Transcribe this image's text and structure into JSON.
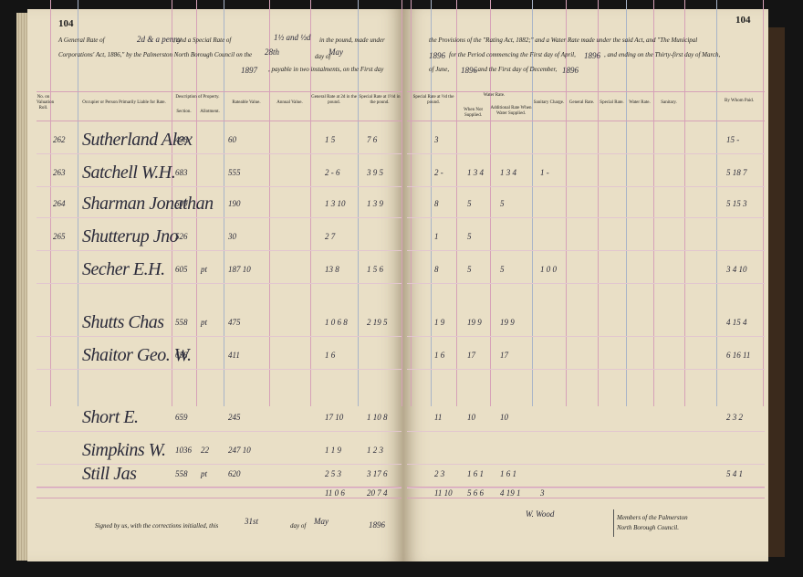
{
  "pages": {
    "left_number": "104",
    "right_number": "104"
  },
  "header": {
    "left": [
      "A General Rate of",
      "2d & a penny",
      ", and a Special Rate of",
      "1½ and ½d",
      "in the pound, made under",
      "Corporations' Act, 1886,\" by the Palmerston North Borough Council on the",
      "28th",
      "day of",
      "May",
      "1897",
      ", payable in two instalments, on the First day"
    ],
    "right": [
      "the Provisions of the \"Rating Act, 1882;\" and a Water Rate made under the said Act, and \"The Municipal",
      "1896",
      "for the Period commencing the First day of April,",
      "1896",
      ", and ending on the Thirty-first day of March,",
      "of June,",
      "1896",
      ", and the First day of December,",
      "1896"
    ]
  },
  "columns": {
    "num": "No. on Valuation Roll.",
    "name": "Occupier or Person Primarily Liable for Rate.",
    "property": "Description of Property.",
    "section": "Section.",
    "allotment": "Allotment.",
    "rateable": "Rateable Value.",
    "annual": "Annual Value.",
    "general": "General Rate at 2d in the pound.",
    "special": "Special Rate at 1½d in the pound.",
    "special2": "Special Rate at ½d the pound.",
    "water": "Water Rate.",
    "water_not": "When Not Supplied.",
    "additional": "Additional Rate When Water Supplied.",
    "sanitary": "Sanitary Charge.",
    "paid_general": "General Rate.",
    "paid_special": "Special Rate.",
    "paid_water": "Water Rate.",
    "paid_sanitary": "Sanitary.",
    "by_whom": "By Whom Paid."
  },
  "rows": [
    {
      "num": "262",
      "name": "Sutherland Alex",
      "section": "458",
      "rateable": "60",
      "general": "1 5",
      "special": "7 6",
      "special2": "3",
      "paid": "15 -"
    },
    {
      "num": "263",
      "name": "Satchell W.H.",
      "section": "683",
      "rateable": "555",
      "general": "2 - 6",
      "special": "3 9 5",
      "special2": "2 -",
      "water": "1 3 4",
      "additional": "1 3 4",
      "sanitary": "1 -",
      "paid": "5 18 7"
    },
    {
      "num": "264",
      "name": "Sharman Jonathan",
      "section": "509",
      "rateable": "190",
      "general": "1 3 10",
      "special": "1 3 9",
      "special2": "8",
      "water": "5",
      "additional": "5",
      "paid": "5 15 3"
    },
    {
      "num": "265",
      "name": "Shutterup Jno",
      "section": "526",
      "rateable": "30",
      "general": "2 7",
      "special2": "1",
      "water": "5"
    },
    {
      "name": "Secher E.H.",
      "section": "605",
      "allotment": "pt",
      "rateable": "187 10",
      "general": "13 8",
      "special": "1 5 6",
      "special2": "8",
      "water": "5",
      "additional": "5",
      "sanitary": "1 0 0",
      "paid": "3 4 10"
    },
    {
      "name": "Shutts Chas",
      "section": "558",
      "allotment": "pt",
      "rateable": "475",
      "general": "1 0 6 8",
      "special": "2 19 5",
      "special2": "1 9",
      "water": "19 9",
      "additional": "19 9",
      "paid": "4 15 4"
    },
    {
      "name": "Shaitor Geo. W.",
      "section": "658",
      "rateable": "411",
      "general": "1 6",
      "special2": "1 6",
      "water": "17",
      "additional": "17",
      "paid": "6 16 11"
    },
    {
      "name": "Short E.",
      "section": "659",
      "rateable": "245",
      "general": "17 10",
      "special": "1 10 8",
      "special2": "11",
      "water": "10",
      "additional": "10",
      "paid": "2 3 2"
    },
    {
      "name": "Simpkins W.",
      "section": "1036",
      "allotment": "22",
      "rateable": "247 10",
      "general": "1 1 9",
      "special": "1 2 3"
    },
    {
      "name": "Still Jas",
      "section": "558",
      "allotment": "pt",
      "rateable": "620",
      "general": "2 5 3",
      "special": "3 17 6",
      "special2": "2 3",
      "water": "1 6 1",
      "additional": "1 6 1",
      "paid": "5 4 1"
    }
  ],
  "totals": {
    "general": "11 0 6",
    "special": "20 7 4",
    "special2": "11 10",
    "water": "5 6 6",
    "additional": "4 19 1",
    "sanitary": "3"
  },
  "footer": {
    "signed": "Signed by us, with the corrections initialled, this",
    "day_num": "31st",
    "day_of": "day of",
    "month": "May",
    "year": "1896",
    "signature": "W. Wood",
    "members": "Members of the Palmerston North Borough Council."
  }
}
